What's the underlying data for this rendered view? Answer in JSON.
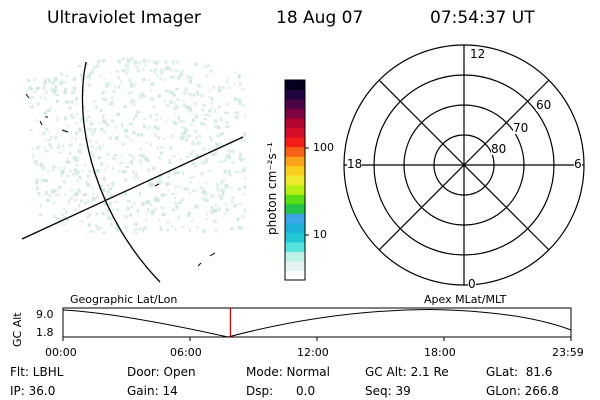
{
  "header": {
    "instrument": "Ultraviolet Imager",
    "date": "18 Aug 07",
    "time": "07:54:37 UT"
  },
  "colorbar": {
    "unit_label": "photon cm⁻²s⁻¹",
    "ticks": [
      "100",
      "10"
    ],
    "colors": [
      "#ffffff",
      "#e4f3f1",
      "#bff0e8",
      "#55e3dd",
      "#20c7d2",
      "#1fb0d8",
      "#3da4e6",
      "#22c44b",
      "#58de14",
      "#b7ef12",
      "#ece92f",
      "#f8ce1f",
      "#f8a31a",
      "#f66215",
      "#f41d1a",
      "#d40d2a",
      "#b2052f",
      "#7e0441",
      "#4b0546",
      "#1f0540",
      "#05001f"
    ]
  },
  "polar": {
    "mlt_labels": {
      "top": "12",
      "left": "18",
      "right": "6",
      "bottom": "0"
    },
    "lat_labels": [
      "60",
      "70",
      "80"
    ]
  },
  "timeline": {
    "ylabel": "GC Alt",
    "yticks": [
      "9.0",
      "1.8"
    ],
    "left_title": "Geographic Lat/Lon",
    "right_title": "Apex MLat/MLT",
    "xticks": [
      "00:00",
      "06:00",
      "12:00",
      "18:00",
      "23:59"
    ],
    "marker_time": "07:54:37"
  },
  "footer": {
    "flt": "Flt: LBHL",
    "ip": "IP: 36.0",
    "door": "Door: Open",
    "gain": "Gain: 14",
    "mode": "Mode: Normal",
    "dsp": "Dsp:      0.0",
    "gc_alt": "GC Alt: 2.1 Re",
    "seq": "Seq: 39",
    "glat": "GLat:  81.6",
    "glon": "GLon: 266.8"
  },
  "style": {
    "aurora_color": "#cfe7e2",
    "marker_color": "#dd0000"
  }
}
